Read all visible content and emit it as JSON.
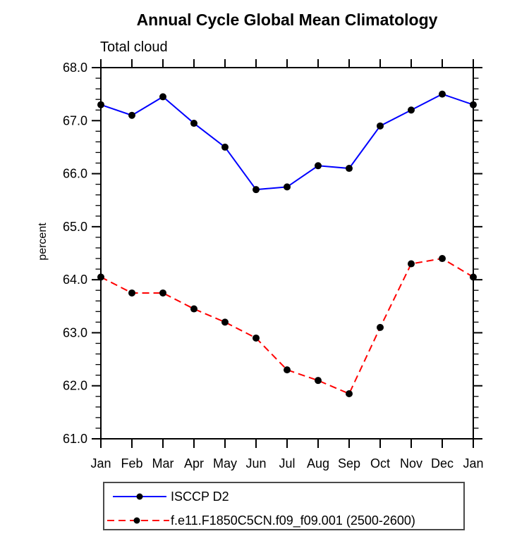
{
  "title": "Annual Cycle Global Mean Climatology",
  "subtitle": "Total cloud",
  "ylabel": "percent",
  "legend": [
    {
      "label": "ISCCP D2",
      "color": "#0000ff",
      "style": "solid",
      "marker_color": "#000000"
    },
    {
      "label": "f.e11.F1850C5CN.f09_f09.001 (2500-2600)",
      "color": "#ff0000",
      "style": "dashed",
      "marker_color": "#000000"
    }
  ],
  "chart_data": {
    "type": "line",
    "title": "Annual Cycle Global Mean Climatology",
    "subtitle": "Total cloud",
    "ylabel": "percent",
    "xlabel": "",
    "categories": [
      "Jan",
      "Feb",
      "Mar",
      "Apr",
      "May",
      "Jun",
      "Jul",
      "Aug",
      "Sep",
      "Oct",
      "Nov",
      "Dec",
      "Jan"
    ],
    "series": [
      {
        "name": "ISCCP D2",
        "color": "#0000ff",
        "style": "solid",
        "marker": "filled-circle",
        "marker_color": "#000000",
        "values": [
          67.3,
          67.1,
          67.45,
          66.95,
          66.5,
          65.7,
          65.75,
          66.15,
          66.1,
          66.9,
          67.2,
          67.5,
          67.3
        ]
      },
      {
        "name": "f.e11.F1850C5CN.f09_f09.001 (2500-2600)",
        "color": "#ff0000",
        "style": "dashed",
        "marker": "filled-circle",
        "marker_color": "#000000",
        "values": [
          64.05,
          63.75,
          63.75,
          63.45,
          63.2,
          62.9,
          62.3,
          62.1,
          61.85,
          63.1,
          64.3,
          64.4,
          64.05
        ]
      }
    ],
    "ylim": [
      61.0,
      68.0
    ],
    "ytick_step": 1.0,
    "yminor_step": 0.2,
    "ytick_labels": [
      "61.0",
      "62.0",
      "63.0",
      "64.0",
      "65.0",
      "66.0",
      "67.0",
      "68.0"
    ],
    "grid": false,
    "legend_position": "bottom",
    "axis_color": "#000000"
  }
}
